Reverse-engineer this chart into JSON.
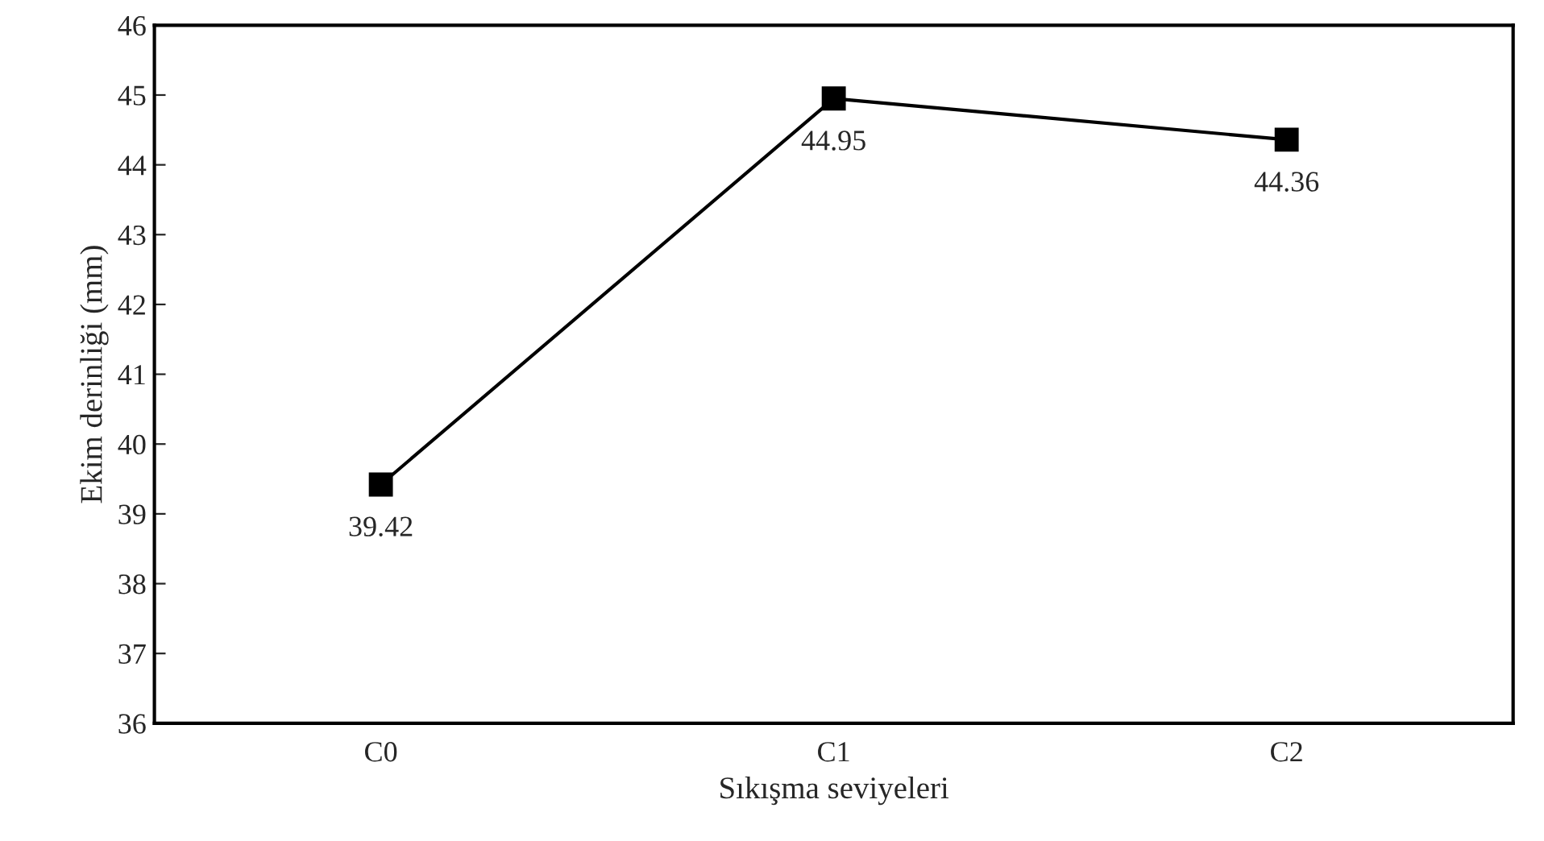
{
  "chart_data": {
    "type": "line",
    "xlabel": "Sıkışma seviyeleri",
    "ylabel": "Ekim derinliği (mm)",
    "categories": [
      "C0",
      "C1",
      "C2"
    ],
    "series": [
      {
        "color": "#000000",
        "values": [
          39.42,
          44.95,
          44.36
        ]
      }
    ],
    "ylim": [
      36,
      46
    ],
    "yticks": [
      36,
      37,
      38,
      39,
      40,
      41,
      42,
      43,
      44,
      45,
      46
    ],
    "marker": "square",
    "line_style": "solid",
    "data_labels": true,
    "grid": false,
    "legend": false
  }
}
